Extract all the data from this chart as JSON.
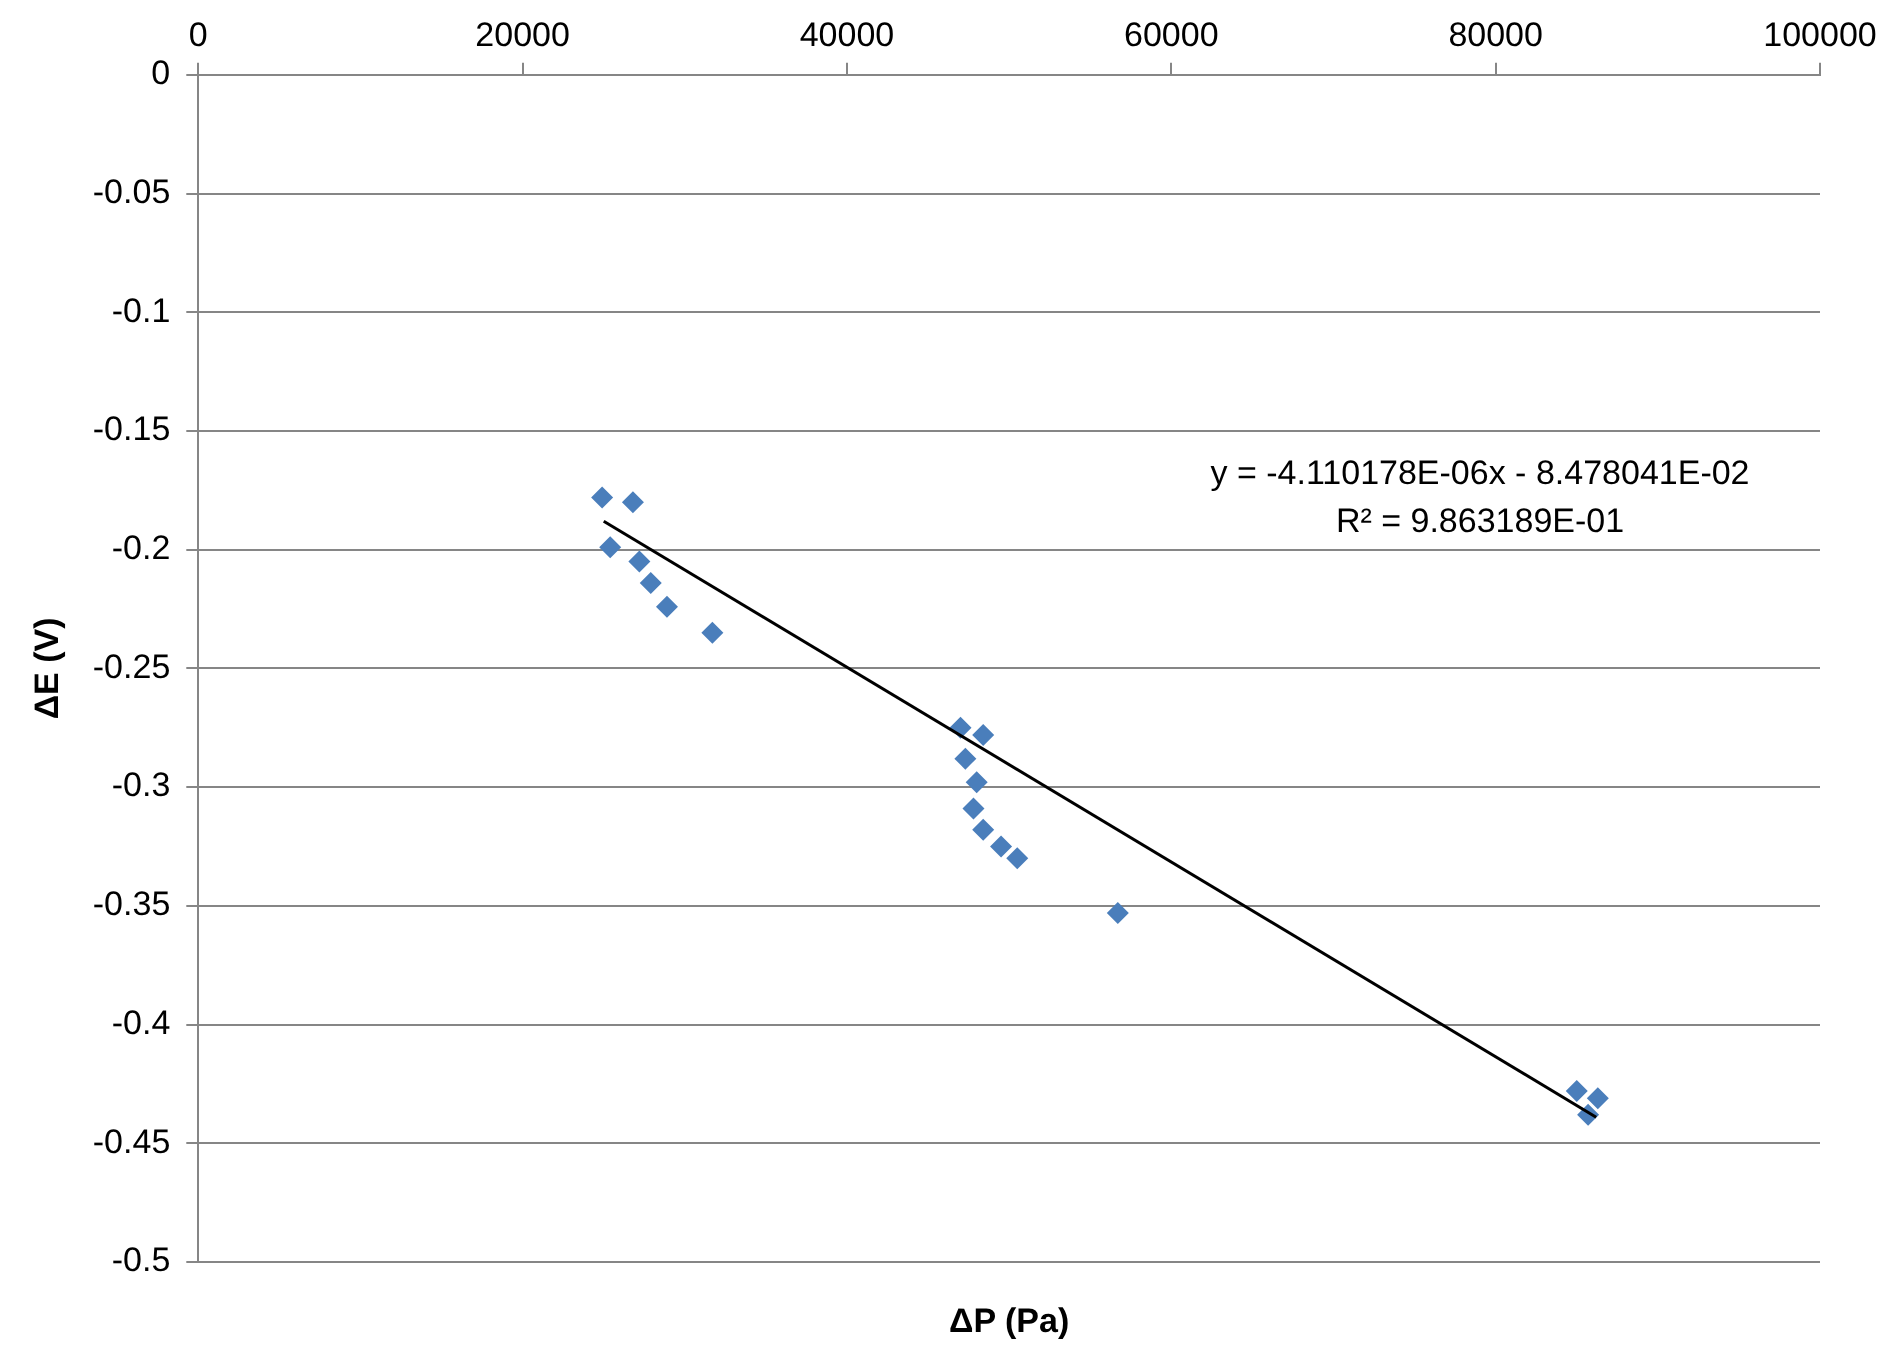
{
  "chart_data": {
    "type": "scatter",
    "xlabel": "ΔP (Pa)",
    "ylabel": "ΔE (V)",
    "xlim": [
      0,
      100000
    ],
    "xticks": [
      0,
      20000,
      40000,
      60000,
      80000,
      100000
    ],
    "ylim": [
      -0.5,
      0
    ],
    "yticks": [
      -0.5,
      -0.45,
      -0.4,
      -0.35,
      -0.3,
      -0.25,
      -0.2,
      -0.15,
      -0.1,
      -0.05,
      0
    ],
    "grid": "y",
    "legend": false,
    "marker": "diamond",
    "series": [
      {
        "color": "#4a7ebb",
        "x": [
          24900,
          26800,
          25400,
          27200,
          27900,
          28900,
          31700,
          47000,
          48400,
          47300,
          48000,
          47800,
          48400,
          49500,
          50500,
          56700,
          85000,
          86300,
          85700
        ],
        "values": [
          -0.178,
          -0.18,
          -0.199,
          -0.205,
          -0.214,
          -0.224,
          -0.235,
          -0.275,
          -0.278,
          -0.288,
          -0.298,
          -0.309,
          -0.318,
          -0.325,
          -0.33,
          -0.353,
          -0.428,
          -0.431,
          -0.438
        ]
      },
      {
        "type": "line",
        "color": "#000000",
        "marker": "none",
        "x": [
          25000,
          86200
        ],
        "values": [
          -0.188,
          -0.439
        ]
      }
    ],
    "annotations": [
      "y = -4.110178E-06x - 8.478041E-02",
      "R² = 9.863189E-01"
    ]
  }
}
